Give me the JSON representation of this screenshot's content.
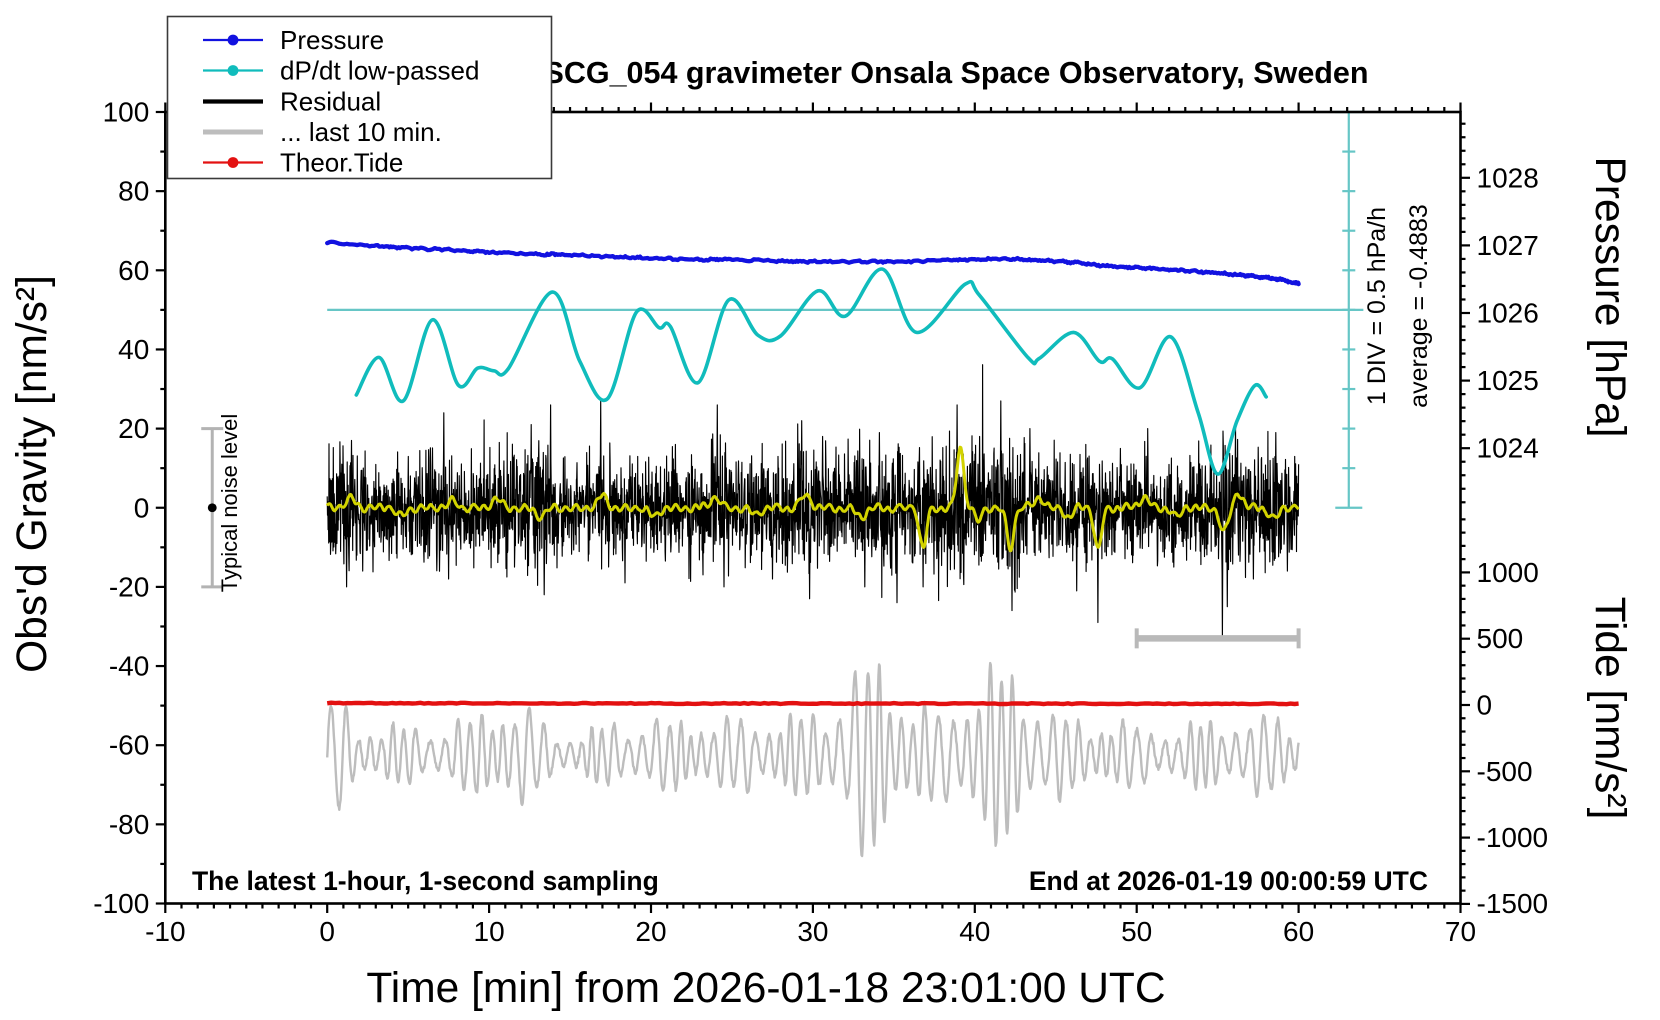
{
  "header": {
    "title": "SCG_054 gravimeter Onsala Space Observatory, Sweden"
  },
  "axes": {
    "x": {
      "title": "Time [min] from 2026-01-18 23:01:00 UTC",
      "range": [
        -10,
        70
      ],
      "major_step": 10,
      "minor_step": 1,
      "tick_labels": [
        -10,
        0,
        10,
        20,
        30,
        40,
        50,
        60,
        70
      ]
    },
    "gravity": {
      "title": "Obs'd Gravity [nm/s²]",
      "range": [
        -100,
        100
      ],
      "major_step": 20,
      "minor_step": 10,
      "tick_labels": [
        100,
        80,
        60,
        40,
        20,
        0,
        -20,
        -40,
        -60,
        -80,
        -100
      ]
    },
    "pressure": {
      "title": "Pressure [hPa]",
      "tick_labels": [
        1028,
        1027,
        1026,
        1025,
        1024
      ],
      "minor_step": 0.2
    },
    "tide": {
      "title": "Tide [nm/s²]",
      "tick_labels": [
        1000,
        500,
        0,
        -500,
        -1000,
        -1500
      ],
      "minor_step": 100
    }
  },
  "legend": {
    "items": [
      {
        "label": "Pressure",
        "color": "#1212e0",
        "style": "thin-line-dot"
      },
      {
        "label": "dP/dt low-passed",
        "color": "#10bcbc",
        "style": "thin-line-dot"
      },
      {
        "label": "Residual",
        "color": "#000000",
        "style": "thick-line"
      },
      {
        "label": "... last 10 min.",
        "color": "#bdbdbd",
        "style": "thick-line"
      },
      {
        "label": "Theor.Tide",
        "color": "#e31111",
        "style": "thin-line-dot"
      }
    ]
  },
  "annotations": {
    "div_scale": "1 DIV = 0.5 hPa/h",
    "average": "average = -0.4883",
    "noise_label": "Typical noise level",
    "sampling_note": "The latest 1-hour, 1-second sampling",
    "end_note": "End at 2026-01-19 00:00:59 UTC"
  },
  "colors": {
    "pressure": "#1212e0",
    "dpdt": "#10bcbc",
    "dpdt_ref": "#66c6c6",
    "residual": "#000000",
    "residual_lowpass": "#d2d300",
    "last10": "#bdbdbd",
    "tide": "#e31111",
    "marker_gray": "#b3b3b3"
  },
  "chart_data": {
    "type": "line",
    "x_unit": "minutes from 2026-01-18 23:01:00 UTC",
    "xlim": [
      -10,
      70
    ],
    "gravity_ylim": [
      -100,
      100
    ],
    "series": [
      {
        "name": "Pressure",
        "unit": "hPa",
        "axis": "pressure",
        "points": [
          [
            0,
            1027.04
          ],
          [
            3,
            1026.99
          ],
          [
            5,
            1026.96
          ],
          [
            8,
            1026.93
          ],
          [
            10,
            1026.9
          ],
          [
            13,
            1026.87
          ],
          [
            15,
            1026.86
          ],
          [
            18,
            1026.83
          ],
          [
            20,
            1026.81
          ],
          [
            23,
            1026.79
          ],
          [
            25,
            1026.79
          ],
          [
            28,
            1026.77
          ],
          [
            30,
            1026.76
          ],
          [
            33,
            1026.76
          ],
          [
            35,
            1026.76
          ],
          [
            38,
            1026.78
          ],
          [
            40,
            1026.79
          ],
          [
            42,
            1026.8
          ],
          [
            44,
            1026.78
          ],
          [
            46,
            1026.75
          ],
          [
            48,
            1026.7
          ],
          [
            50,
            1026.67
          ],
          [
            52,
            1026.64
          ],
          [
            54,
            1026.61
          ],
          [
            56,
            1026.57
          ],
          [
            57,
            1026.55
          ],
          [
            58,
            1026.52
          ],
          [
            59,
            1026.49
          ],
          [
            60,
            1026.43
          ]
        ]
      },
      {
        "name": "dP/dt low-passed",
        "unit": "gravity-axis units; 1 DIV (10 units) = 0.5 hPa/h; centerline at 50",
        "centerline": 50,
        "points": [
          [
            1.8,
            28.5
          ],
          [
            3.2,
            38
          ],
          [
            4.7,
            27
          ],
          [
            6.5,
            47.5
          ],
          [
            8.1,
            31
          ],
          [
            9.3,
            35.3
          ],
          [
            10.3,
            34.6
          ],
          [
            11.2,
            35.2
          ],
          [
            13.9,
            54.5
          ],
          [
            15.6,
            37
          ],
          [
            17.3,
            27.5
          ],
          [
            19.1,
            49.4
          ],
          [
            20.5,
            45.5
          ],
          [
            21.2,
            45.8
          ],
          [
            22.9,
            31.6
          ],
          [
            24.8,
            52.5
          ],
          [
            26.6,
            43.6
          ],
          [
            28.0,
            43.4
          ],
          [
            30.3,
            54.8
          ],
          [
            32.0,
            48.4
          ],
          [
            34.3,
            60.3
          ],
          [
            36.4,
            44.3
          ],
          [
            39.4,
            56.5
          ],
          [
            40.3,
            53.6
          ],
          [
            43.3,
            37.9
          ],
          [
            44.0,
            37.8
          ],
          [
            46.1,
            44.3
          ],
          [
            47.7,
            37.0
          ],
          [
            48.5,
            37.6
          ],
          [
            50.2,
            30.3
          ],
          [
            52.1,
            43.2
          ],
          [
            53.8,
            24
          ],
          [
            55.0,
            8.5
          ],
          [
            56.2,
            22
          ],
          [
            57.3,
            30.9
          ],
          [
            58.0,
            28.0
          ]
        ]
      },
      {
        "name": "Residual",
        "unit": "nm/s2",
        "mean": 0,
        "generator": {
          "seed": 20,
          "samples": 3200,
          "amp_mult": 1.35,
          "envelope": [
            [
              0,
              9
            ],
            [
              1,
              12
            ],
            [
              2,
              10
            ],
            [
              3,
              8.5
            ],
            [
              5,
              8.5
            ],
            [
              7,
              11
            ],
            [
              8,
              9
            ],
            [
              10,
              9.5
            ],
            [
              12,
              11
            ],
            [
              13,
              12
            ],
            [
              14,
              10
            ],
            [
              15,
              8.5
            ],
            [
              17,
              11
            ],
            [
              19,
              8.5
            ],
            [
              21,
              8.5
            ],
            [
              23,
              10
            ],
            [
              24,
              12
            ],
            [
              25,
              9
            ],
            [
              27,
              9.5
            ],
            [
              29,
              12
            ],
            [
              30,
              12
            ],
            [
              31,
              9.5
            ],
            [
              33,
              12
            ],
            [
              35,
              11
            ],
            [
              37,
              10
            ],
            [
              38,
              12
            ],
            [
              40,
              11
            ],
            [
              41,
              13
            ],
            [
              42,
              13
            ],
            [
              44,
              10
            ],
            [
              46,
              10
            ],
            [
              47,
              11
            ],
            [
              48,
              9.5
            ],
            [
              50,
              9
            ],
            [
              53,
              9
            ],
            [
              54,
              10
            ],
            [
              55,
              13
            ],
            [
              56,
              12
            ],
            [
              57,
              10
            ],
            [
              58,
              11
            ],
            [
              60,
              10
            ]
          ],
          "spikes": [
            [
              1.2,
              -20
            ],
            [
              1.5,
              17
            ],
            [
              2.2,
              -16
            ],
            [
              7.2,
              24
            ],
            [
              7.5,
              -18
            ],
            [
              12.6,
              21
            ],
            [
              13.4,
              -22
            ],
            [
              13.8,
              26
            ],
            [
              16.9,
              27
            ],
            [
              18.4,
              -19
            ],
            [
              21.5,
              16
            ],
            [
              24.1,
              26
            ],
            [
              24.5,
              -20
            ],
            [
              27.5,
              -18
            ],
            [
              29.3,
              22
            ],
            [
              29.8,
              -23
            ],
            [
              30.6,
              18
            ],
            [
              33.2,
              -20
            ],
            [
              34.1,
              19
            ],
            [
              35.2,
              -24
            ],
            [
              36.8,
              -20
            ],
            [
              38.9,
              26
            ],
            [
              40.3,
              18
            ],
            [
              41.6,
              27
            ],
            [
              42.3,
              -26
            ],
            [
              43.4,
              20
            ],
            [
              46.3,
              -21
            ],
            [
              47.6,
              -29
            ],
            [
              49.0,
              15
            ],
            [
              52.3,
              -15
            ],
            [
              55.3,
              -33
            ],
            [
              55.6,
              -25
            ],
            [
              56.1,
              21
            ],
            [
              57.2,
              -18
            ],
            [
              58.6,
              19
            ],
            [
              59.3,
              -16
            ]
          ]
        }
      },
      {
        "name": "Residual low-passed (yellow)",
        "unit": "nm/s2",
        "base_amplitude": 1.2,
        "bumps": [
          [
            1.5,
            2.5,
            0.3
          ],
          [
            4.5,
            -2,
            0.3
          ],
          [
            7.8,
            2,
            0.25
          ],
          [
            10.5,
            2,
            0.3
          ],
          [
            13.2,
            -2.5,
            0.3
          ],
          [
            17.0,
            3,
            0.25
          ],
          [
            20.2,
            -2.5,
            0.3
          ],
          [
            24.0,
            2.5,
            0.3
          ],
          [
            26.5,
            -2,
            0.3
          ],
          [
            29.5,
            3,
            0.3
          ],
          [
            33.0,
            -2.5,
            0.3
          ],
          [
            36.8,
            -10.5,
            0.22
          ],
          [
            39.1,
            15,
            0.22
          ],
          [
            40.2,
            -3.5,
            0.22
          ],
          [
            42.2,
            -10,
            0.22
          ],
          [
            44.0,
            2.5,
            0.3
          ],
          [
            45.8,
            -2.5,
            0.25
          ],
          [
            47.6,
            -10.5,
            0.22
          ],
          [
            50.5,
            2.5,
            0.3
          ],
          [
            52.5,
            -2.5,
            0.25
          ],
          [
            55.4,
            -6,
            0.25
          ],
          [
            56.3,
            3.5,
            0.25
          ],
          [
            58.5,
            -2.5,
            0.3
          ]
        ],
        "note": "small oscillation around 0 with listed excursions [t, amplitude, sigma]"
      },
      {
        "name": "... last 10 min.",
        "unit": "nm/s2, plotted offset",
        "offset_v": -62.5,
        "carrier_period_min": 0.78,
        "envelope": [
          [
            0,
            13
          ],
          [
            0.8,
            19
          ],
          [
            1.5,
            10
          ],
          [
            3,
            9
          ],
          [
            5,
            8.5
          ],
          [
            7,
            9
          ],
          [
            9,
            11
          ],
          [
            10,
            15
          ],
          [
            11,
            18
          ],
          [
            12,
            16
          ],
          [
            13,
            11
          ],
          [
            14,
            7
          ],
          [
            15,
            6.5
          ],
          [
            16,
            7
          ],
          [
            17,
            9
          ],
          [
            18,
            10.5
          ],
          [
            19,
            9.5
          ],
          [
            20,
            11
          ],
          [
            21,
            10
          ],
          [
            22,
            11
          ],
          [
            23,
            12.5
          ],
          [
            24,
            11
          ],
          [
            25,
            10
          ],
          [
            26,
            12
          ],
          [
            27,
            11
          ],
          [
            28,
            12
          ],
          [
            29,
            11.5
          ],
          [
            30,
            13
          ],
          [
            31,
            15
          ],
          [
            32,
            22
          ],
          [
            33,
            28.5
          ],
          [
            34,
            29
          ],
          [
            35,
            24
          ],
          [
            36,
            17
          ],
          [
            37,
            14
          ],
          [
            38,
            13
          ],
          [
            39,
            19
          ],
          [
            40,
            24
          ],
          [
            41,
            26
          ],
          [
            42,
            26
          ],
          [
            43,
            23
          ],
          [
            44,
            17
          ],
          [
            45,
            13
          ],
          [
            46,
            11
          ],
          [
            47,
            10
          ],
          [
            48,
            12.5
          ],
          [
            49,
            10
          ],
          [
            50,
            9
          ],
          [
            51,
            8.5
          ],
          [
            52,
            9
          ],
          [
            53,
            8.5
          ],
          [
            54,
            10.5
          ],
          [
            55,
            11
          ],
          [
            56,
            12.5
          ],
          [
            57,
            11
          ],
          [
            58,
            12.5
          ],
          [
            59,
            11
          ],
          [
            60,
            10.5
          ]
        ]
      },
      {
        "name": "Theor.Tide",
        "unit": "nm/s2 (tide axis)",
        "points": [
          [
            0,
            14
          ],
          [
            15,
            12.5
          ],
          [
            30,
            11
          ],
          [
            45,
            10
          ],
          [
            60,
            9
          ]
        ]
      }
    ],
    "markers": {
      "noise_errorbar": {
        "t": -7.1,
        "v_center": 0,
        "v_halfspan": 20
      },
      "last10_marker_bar": {
        "t1": 50,
        "t2": 60,
        "v": -33
      },
      "reference_line": {
        "v": 50,
        "t1": 0,
        "t2": 64
      },
      "div_scale_bar": {
        "x_t": 63.1,
        "v_from": 0,
        "v_to": 100,
        "units_per_div": 10
      }
    }
  }
}
